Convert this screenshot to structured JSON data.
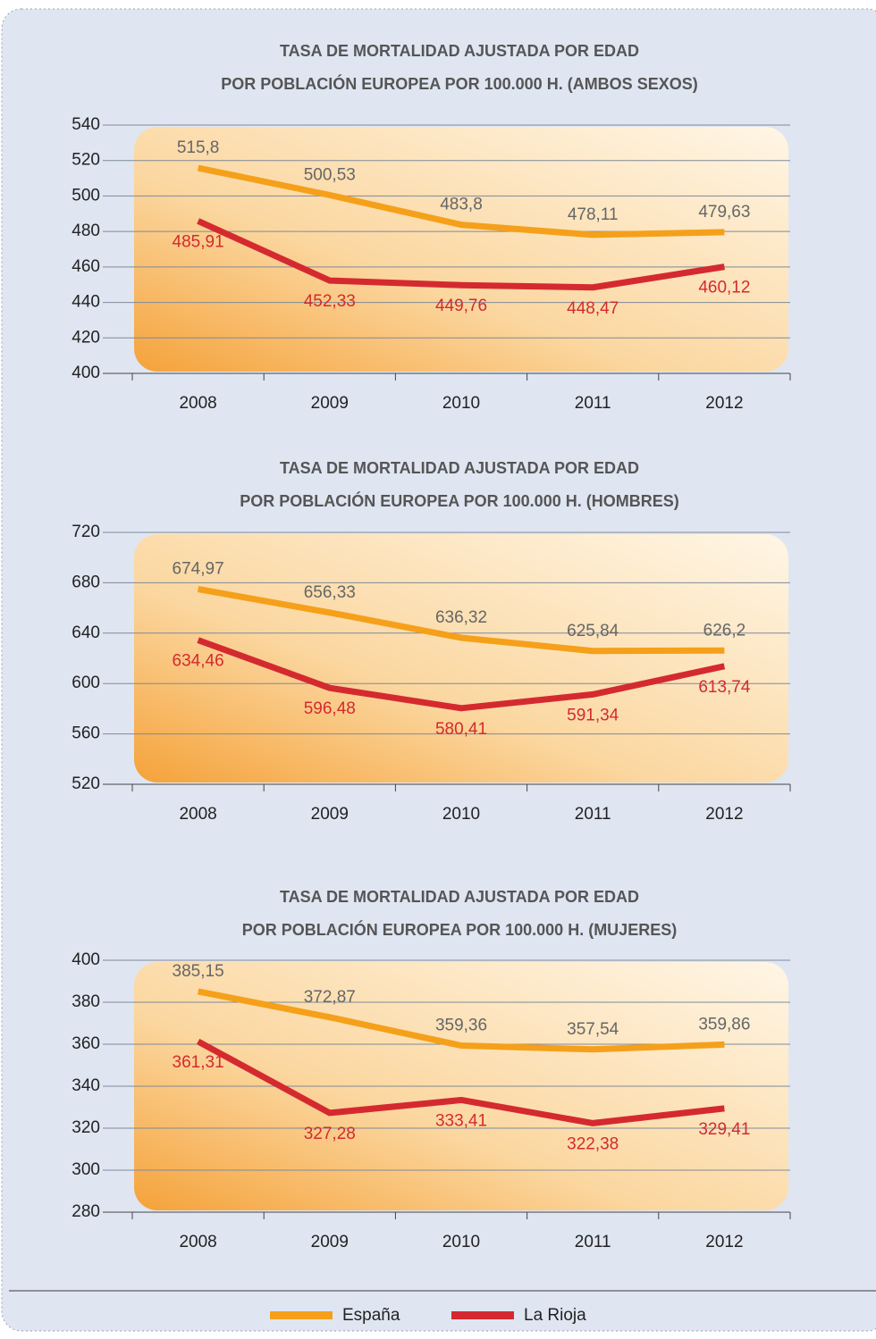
{
  "legend": [
    {
      "name": "España",
      "color": "#f5a01a"
    },
    {
      "name": "La Rioja",
      "color": "#d42a2f"
    }
  ],
  "chart_data": [
    {
      "type": "line",
      "title": [
        "TASA DE MORTALIDAD AJUSTADA POR EDAD",
        "POR POBLACIÓN EUROPEA POR 100.000 H. (AMBOS SEXOS)"
      ],
      "categories": [
        "2008",
        "2009",
        "2010",
        "2011",
        "2012"
      ],
      "series": [
        {
          "values": [
            515.8,
            500.53,
            483.8,
            478.11,
            479.63
          ],
          "value_labels": [
            "515,8",
            "500,53",
            "483,8",
            "478,11",
            "479,63"
          ]
        },
        {
          "values": [
            485.91,
            452.33,
            449.76,
            448.47,
            460.12
          ],
          "value_labels": [
            "485,91",
            "452,33",
            "449,76",
            "448,47",
            "460,12"
          ]
        }
      ],
      "ylim": [
        400,
        540
      ],
      "yticks": [
        400,
        420,
        440,
        460,
        480,
        500,
        520,
        540
      ],
      "grid": true
    },
    {
      "type": "line",
      "title": [
        "TASA DE MORTALIDAD AJUSTADA POR EDAD",
        "POR POBLACIÓN EUROPEA POR 100.000 H. (HOMBRES)"
      ],
      "categories": [
        "2008",
        "2009",
        "2010",
        "2011",
        "2012"
      ],
      "series": [
        {
          "values": [
            674.97,
            656.33,
            636.32,
            625.84,
            626.2
          ],
          "value_labels": [
            "674,97",
            "656,33",
            "636,32",
            "625,84",
            "626,2"
          ]
        },
        {
          "values": [
            634.46,
            596.48,
            580.41,
            591.34,
            613.74
          ],
          "value_labels": [
            "634,46",
            "596,48",
            "580,41",
            "591,34",
            "613,74"
          ]
        }
      ],
      "ylim": [
        520,
        720
      ],
      "yticks": [
        520,
        560,
        600,
        640,
        680,
        720
      ],
      "grid": true
    },
    {
      "type": "line",
      "title": [
        "TASA DE MORTALIDAD AJUSTADA POR EDAD",
        "POR POBLACIÓN EUROPEA POR 100.000 H. (MUJERES)"
      ],
      "categories": [
        "2008",
        "2009",
        "2010",
        "2011",
        "2012"
      ],
      "series": [
        {
          "values": [
            385.15,
            372.87,
            359.36,
            357.54,
            359.86
          ],
          "value_labels": [
            "385,15",
            "372,87",
            "359,36",
            "357,54",
            "359,86"
          ]
        },
        {
          "values": [
            361.31,
            327.28,
            333.41,
            322.38,
            329.41
          ],
          "value_labels": [
            "361,31",
            "327,28",
            "333,41",
            "322,38",
            "329,41"
          ]
        }
      ],
      "ylim": [
        280,
        400
      ],
      "yticks": [
        280,
        300,
        320,
        340,
        360,
        380,
        400
      ],
      "grid": true
    }
  ]
}
